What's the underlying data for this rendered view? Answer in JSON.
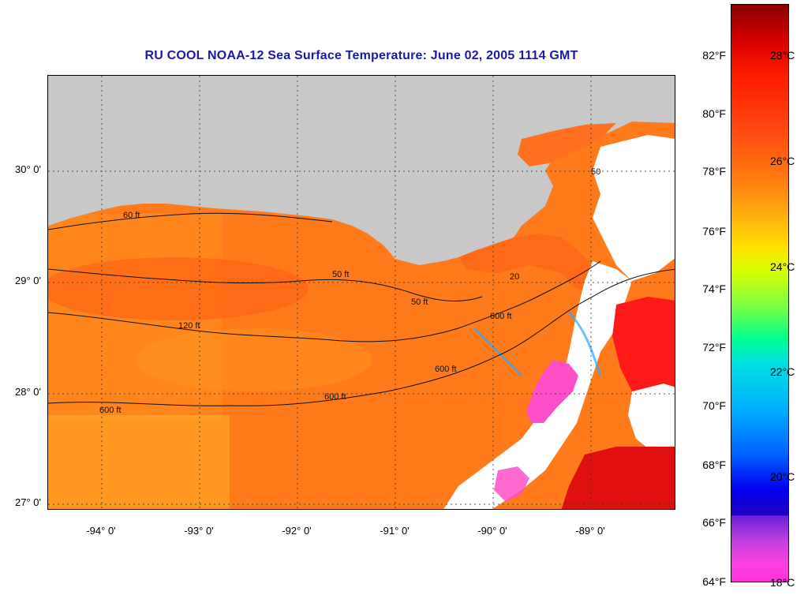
{
  "title": "RU COOL  NOAA-12  Sea Surface Temperature:  June 02, 2005 1114 GMT",
  "latitude_labels": [
    "30° 0'",
    "29° 0'",
    "28° 0'",
    "27° 0'"
  ],
  "longitude_labels": [
    "-94° 0'",
    "-93° 0'",
    "-92° 0'",
    "-91° 0'",
    "-90° 0'",
    "-89° 0'"
  ],
  "contour_labels": [
    "60 ft",
    "50 ft",
    "120 ft",
    "600 ft",
    "600 ft",
    "600 ft",
    "600 ft",
    "50 ft",
    "20",
    "50"
  ],
  "colorbar": {
    "fahrenheit_labels": [
      "82°F",
      "80°F",
      "78°F",
      "76°F",
      "74°F",
      "72°F",
      "70°F",
      "68°F",
      "66°F",
      "64°F"
    ],
    "celsius_labels": [
      "28°C",
      "26°C",
      "24°C",
      "22°C",
      "20°C",
      "18°C"
    ]
  },
  "colors": {
    "title": "#1a1aa8",
    "land": "#c8c8c8",
    "no_data": "#ffffff",
    "ocean_dominant": "#ff7a1a"
  }
}
